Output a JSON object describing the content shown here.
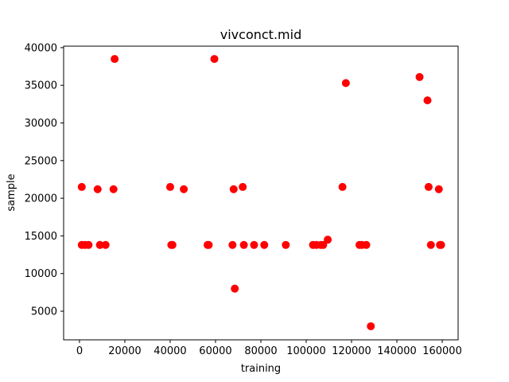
{
  "chart_data": {
    "type": "scatter",
    "title": "vivconct.mid",
    "xlabel": "training",
    "ylabel": "sample",
    "xlim": [
      -7000,
      167000
    ],
    "ylim": [
      1200,
      40200
    ],
    "xticks": [
      0,
      20000,
      40000,
      60000,
      80000,
      100000,
      120000,
      140000,
      160000
    ],
    "yticks": [
      5000,
      10000,
      15000,
      20000,
      25000,
      30000,
      35000,
      40000
    ],
    "grid": false,
    "marker_color": "#ff0000",
    "series": [
      {
        "x": [
          1000,
          1000,
          2500,
          4000,
          8000,
          9000,
          11500,
          15000,
          15500,
          40000,
          40500,
          41000,
          46000,
          56500,
          57000,
          59500,
          67500,
          68000,
          68500,
          72000,
          72500,
          77000,
          81500,
          91000,
          103000,
          104500,
          106500,
          107500,
          109500,
          116000,
          117500,
          123500,
          124500,
          126500,
          128500,
          150000,
          153500,
          154000,
          155000,
          158500,
          159000,
          159500
        ],
        "y": [
          21500,
          13800,
          13800,
          13800,
          21200,
          13800,
          13800,
          21200,
          38500,
          21500,
          13800,
          13800,
          21200,
          13800,
          13800,
          38500,
          13800,
          21200,
          8000,
          21500,
          13800,
          13800,
          13800,
          13800,
          13800,
          13800,
          13800,
          13800,
          14500,
          21500,
          35300,
          13800,
          13800,
          13800,
          3000,
          36100,
          33000,
          21500,
          13800,
          21200,
          13800,
          13800
        ]
      }
    ]
  }
}
